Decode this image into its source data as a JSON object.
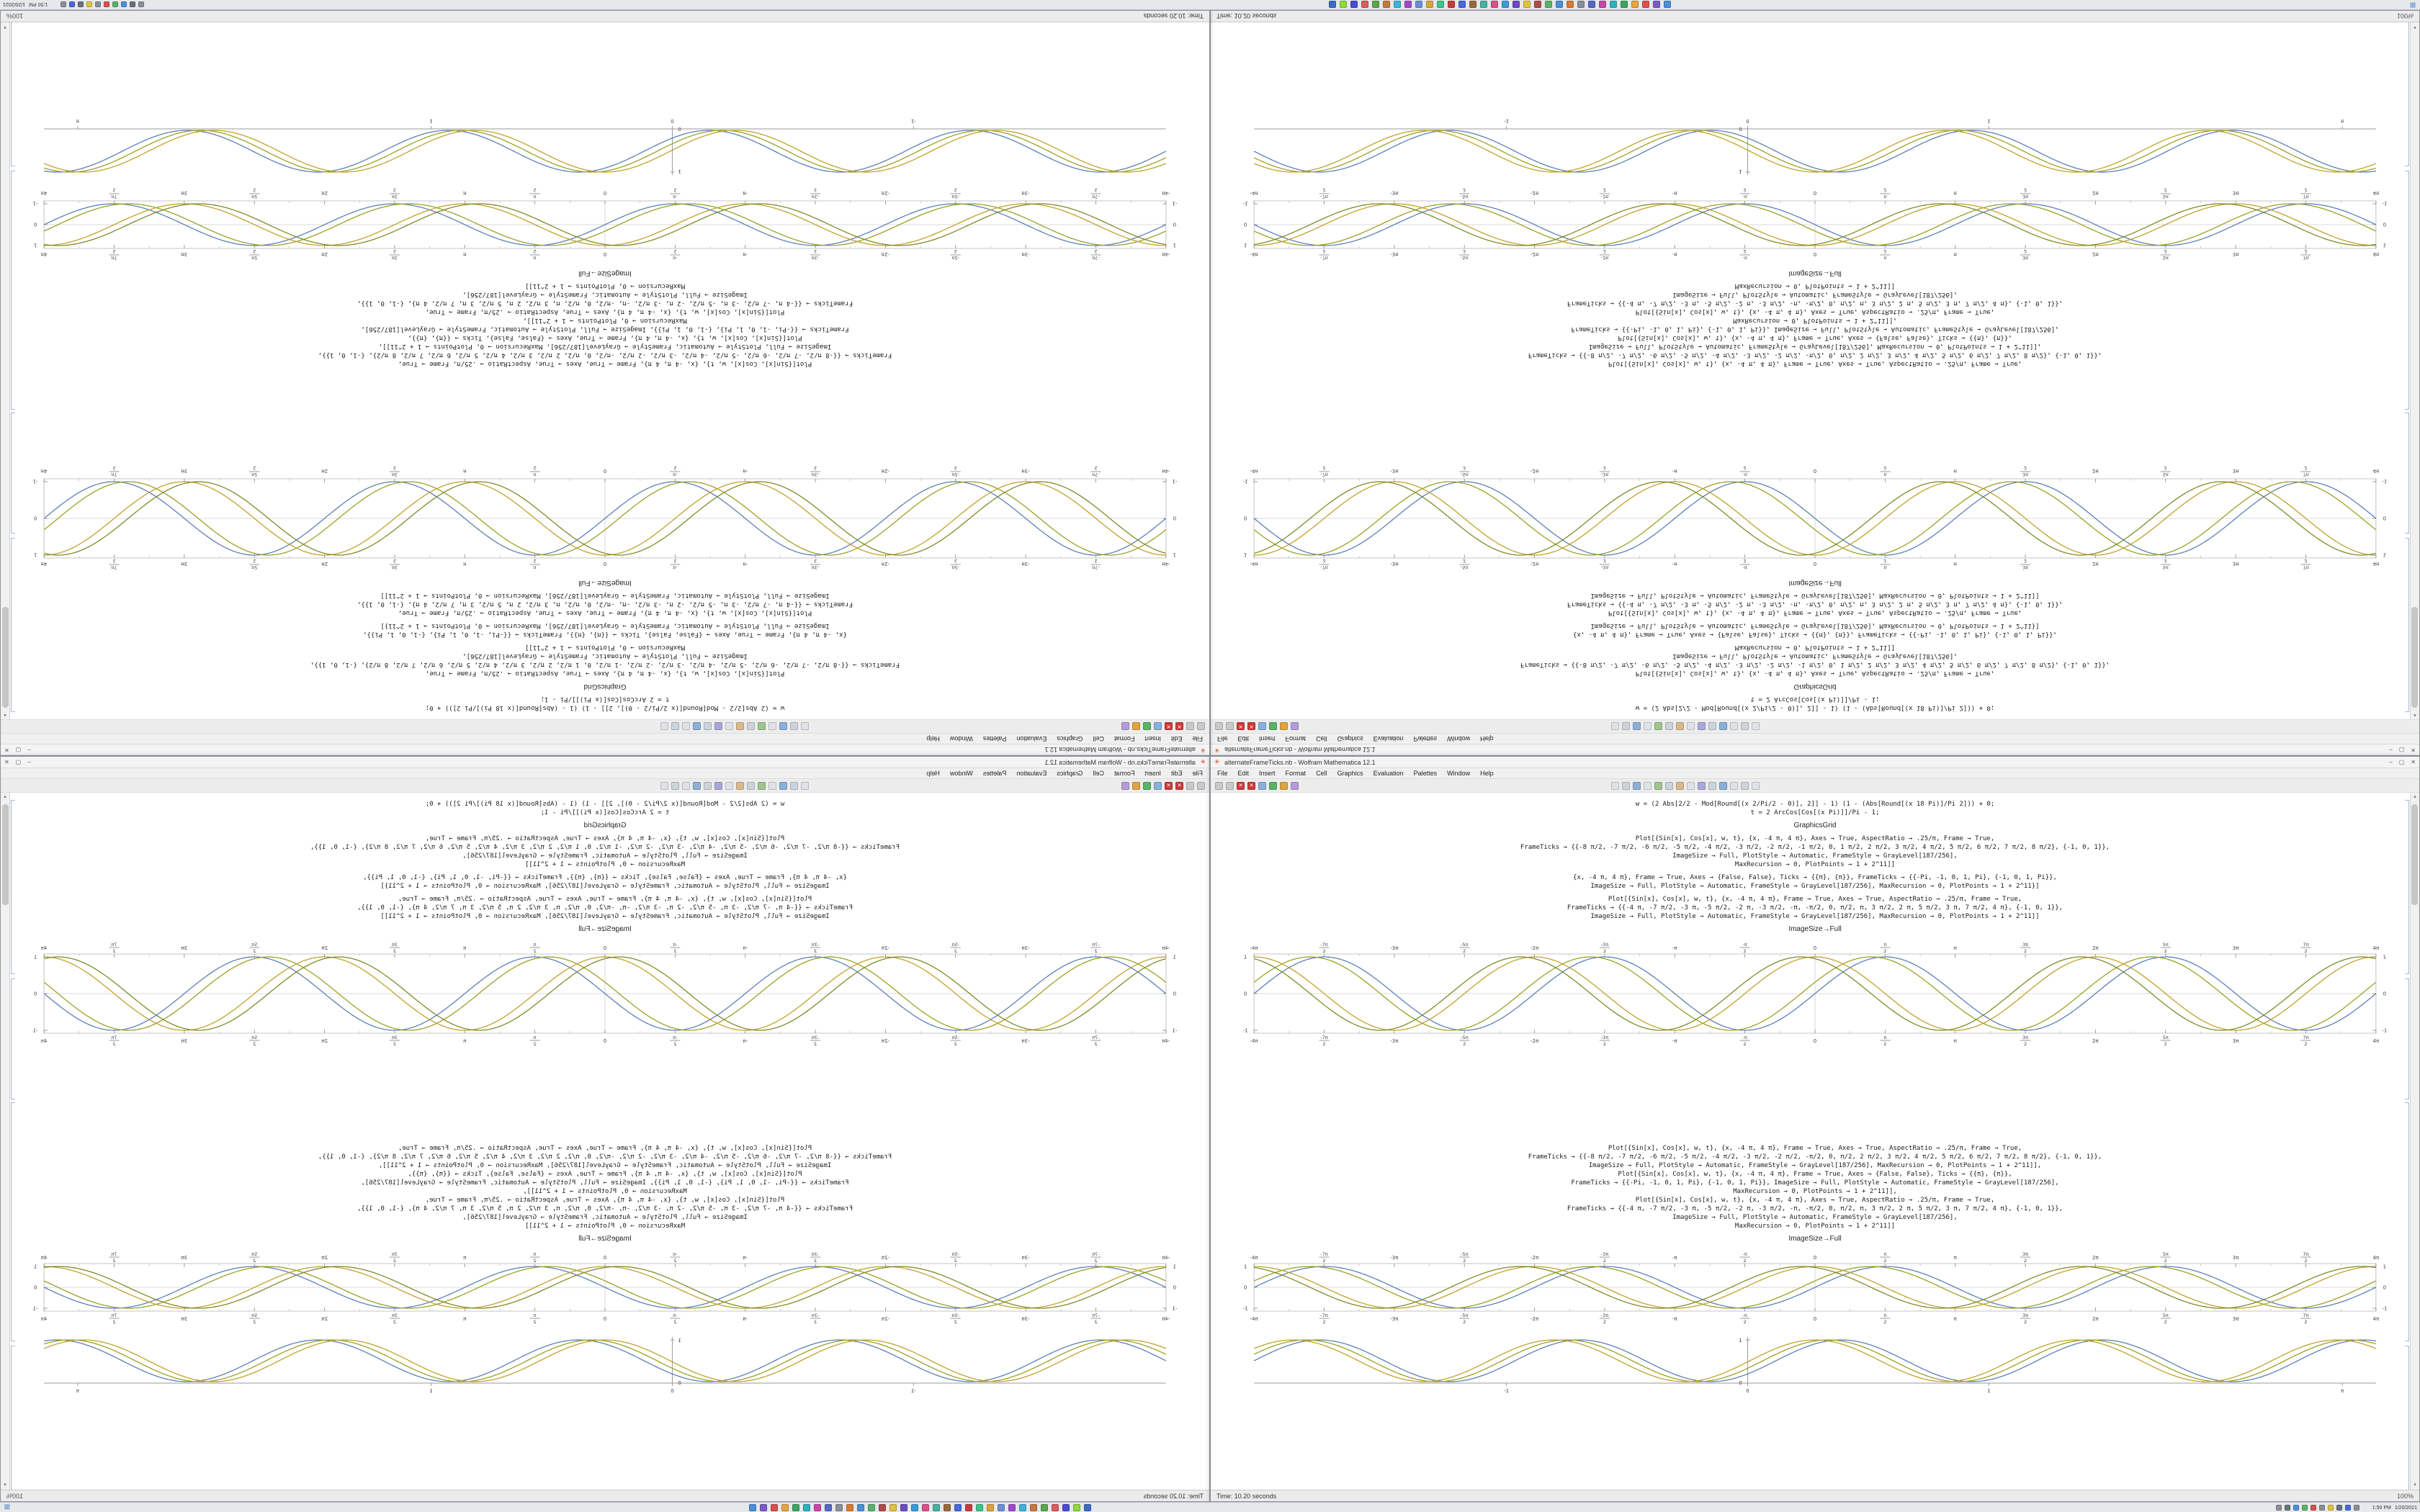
{
  "window": {
    "title": "alternateFrameTicks.nb - Wolfram Mathematica 12.1",
    "buttons": {
      "minimize": "–",
      "maximize": "▢",
      "close": "✕"
    },
    "menu": [
      "File",
      "Edit",
      "Insert",
      "Format",
      "Cell",
      "Graphics",
      "Evaluation",
      "Palettes",
      "Window",
      "Help"
    ],
    "status_left": "Time: 10.20 seconds",
    "status_right": "100%"
  },
  "toolbar": {
    "group1": [
      "#c9c9c9",
      "#c9c9c9",
      "red",
      "red",
      "#8ab0d9",
      "#58b368",
      "#e0a33d",
      "#b59ad9"
    ],
    "group2": [
      "#dfe3e8",
      "#cdd3da",
      "#8ab0d9",
      "#dfe3e8",
      "#9fc48f",
      "#cdd3da",
      "#d9b98a",
      "#dfe3e8",
      "#a9a9d9",
      "#cdd3da",
      "#8ab0d9",
      "#dfe3e8",
      "#cdd3da",
      "#dfe3e8"
    ]
  },
  "taskbar": {
    "start_glyph": "⊞",
    "app_icons": [
      "#4a90d9",
      "#7b5cc6",
      "#d94f4f",
      "#e8a33d",
      "#3da55f",
      "#2bb3c0",
      "#c548a8",
      "#5468c4",
      "#8a8f98",
      "#d97b2f",
      "#4a90d9",
      "#58b368",
      "#b04a4a",
      "#e0c23d",
      "#6a4ac6",
      "#3a9ad9",
      "#d94f8a",
      "#4ab0a0",
      "#9a6a3d",
      "#4a68d9",
      "#c43d3d",
      "#3dc48a",
      "#d9a33d",
      "#6a8fd9",
      "#a04ac6",
      "#3db3d9",
      "#c47b3d",
      "#5ca54a",
      "#d95c5c",
      "#4a4ad9",
      "#8fd93d",
      "#3d6ac4"
    ],
    "tray_icons": [
      "#8a8f98",
      "#6a7280",
      "#4a90d9",
      "#58b368",
      "#d94f4f",
      "#8a8f98",
      "#e0c23d",
      "#6a7280",
      "#4a68d9",
      "#8a8f98"
    ],
    "clock_time": "1:50 PM",
    "clock_date": "1/20/2021"
  },
  "notebook": {
    "cells": [
      {
        "type": "code",
        "lines": [
          "w = (2 Abs[2/2 - Mod[Round[(x 2/Pi/2 - 0)], 2]] - 1) (1 - (Abs[Round[(x 18 Pi)]/Pi 2])) + 0;",
          "t = 2 ArcCos[Cos[(x Pi)]]/Pi - 1;"
        ]
      },
      {
        "type": "caption",
        "text": "GraphicsGrid"
      },
      {
        "type": "code",
        "lines": [
          "Plot[{Sin[x], Cos[x], w, t}, {x, -4 π, 4 π}, Axes → True, AspectRatio → .25/π, Frame → True,",
          "FrameTicks → {{-8 π/2, -7 π/2, -6 π/2, -5 π/2, -4 π/2, -3 π/2, -2 π/2, -1 π/2, 0, 1 π/2, 2 π/2, 3 π/2, 4 π/2, 5 π/2, 6 π/2, 7 π/2, 8 π/2}, {-1, 0, 1}},",
          "ImageSize → Full, PlotStyle → Automatic, FrameStyle → GrayLevel[187/256],",
          "MaxRecursion → 0, PlotPoints → 1 + 2^11]]"
        ]
      },
      {
        "type": "code",
        "lines": [
          "{x, -4 π, 4 π}, Frame → True, Axes → {False, False}, Ticks → {{π}, {π}}, FrameTicks → {{-Pi, -1, 0, 1, Pi}, {-1, 0, 1, Pi}},",
          "ImageSize → Full, PlotStyle → Automatic, FrameStyle → GrayLevel[187/256], MaxRecursion → 0, PlotPoints → 1 + 2^11}]"
        ]
      },
      {
        "type": "code",
        "lines": [
          "Plot[{Sin[x], Cos[x], w, t}, {x, -4 π, 4 π}, Frame → True, Axes → True, AspectRatio → .25/π, Frame → True,",
          "FrameTicks → {{-4 π, -7 π/2, -3 π, -5 π/2, -2 π, -3 π/2, -π, -π/2, 0, π/2, π, 3 π/2, 2 π, 5 π/2, 3 π, 7 π/2, 4 π}, {-1, 0, 1}},",
          "ImageSize → Full, PlotStyle → Automatic, FrameStyle → GrayLevel[187/256], MaxRecursion → 0, PlotPoints → 1 + 2^11]]"
        ]
      },
      {
        "type": "caption",
        "text": "ImageSize→Full"
      },
      {
        "type": "plot",
        "plot": "framedA"
      },
      {
        "type": "spacer",
        "h": 118
      },
      {
        "type": "code",
        "lines": [
          "Plot[{Sin[x], Cos[x], w, t}, {x, -4 π, 4 π}, Frame → True, Axes → True, AspectRatio → .25/π, Frame → True,",
          "FrameTicks → {{-8 π/2, -7 π/2, -6 π/2, -5 π/2, -4 π/2, -3 π/2, -2 π/2, -π/2, 0, π/2, 2 π/2, 3 π/2, 4 π/2, 5 π/2, 6 π/2, 7 π/2, 8 π/2}, {-1, 0, 1}},",
          "ImageSize → Full, PlotStyle → Automatic, FrameStyle → GrayLevel[187/256], MaxRecursion → 0, PlotPoints → 1 + 2^11]],",
          "Plot[{Sin[x], Cos[x], w, t}, {x, -4 π, 4 π}, Frame → True, Axes → {False, False}, Ticks → {{π}, {π}},",
          "FrameTicks → {{-Pi, -1, 0, 1, Pi}, {-1, 0, 1, Pi}}, ImageSize → Full, PlotStyle → Automatic, FrameStyle → GrayLevel[187/256],",
          "MaxRecursion → 0, PlotPoints → 1 + 2^11]],",
          "Plot[{Sin[x], Cos[x], w, t}, {x, -4 π, 4 π}, Axes → True, AspectRatio → .25/π, Frame → True,",
          "FrameTicks → {{-4 π, -7 π/2, -3 π, -5 π/2, -2 π, -3 π/2, -π, -π/2, 0, π/2, π, 3 π/2, 2 π, 5 π/2, 3 π, 7 π/2, 4 π}, {-1, 0, 1}},",
          "ImageSize → Full, PlotStyle → Automatic, FrameStyle → GrayLevel[187/256],",
          "MaxRecursion → 0, PlotPoints → 1 + 2^11]]"
        ]
      },
      {
        "type": "caption",
        "text": "ImageSize→Full"
      },
      {
        "type": "plot",
        "plot": "framedB"
      },
      {
        "type": "plot",
        "plot": "humps"
      }
    ]
  },
  "plots": {
    "framedA": {
      "type": "framed",
      "total_h": 148,
      "cycles": 4,
      "xticks": [
        "-4π",
        "-7π/2",
        "-3π",
        "-5π/2",
        "-2π",
        "-3π/2",
        "-π",
        "-π/2",
        "0",
        "π/2",
        "π",
        "3π/2",
        "2π",
        "5π/2",
        "3π",
        "7π/2",
        "4π"
      ],
      "yticks": [
        "-1",
        "0",
        "1"
      ],
      "series": [
        {
          "fn": "sin",
          "ph": 0,
          "color": "#5e81b5"
        },
        {
          "fn": "sin",
          "ph": 0.05,
          "color": "#9aa226"
        },
        {
          "fn": "sin",
          "ph": 0.25,
          "color": "#c2a22e"
        },
        {
          "fn": "sin",
          "ph": 0.3,
          "color": "#7e8c2a"
        }
      ]
    },
    "framedB": {
      "type": "framed",
      "total_h": 104,
      "cycles": 4,
      "xticks": [
        "-4π",
        "-7π/2",
        "-3π",
        "-5π/2",
        "-2π",
        "-3π/2",
        "-π",
        "-π/2",
        "0",
        "π/2",
        "π",
        "3π/2",
        "2π",
        "5π/2",
        "3π",
        "7π/2",
        "4π"
      ],
      "yticks": [
        "-1",
        "0",
        "1"
      ],
      "series": [
        {
          "fn": "sin",
          "ph": 0,
          "color": "#5e81b5"
        },
        {
          "fn": "sin",
          "ph": 0.05,
          "color": "#9aa226"
        },
        {
          "fn": "sin",
          "ph": 0.25,
          "color": "#c2a22e"
        },
        {
          "fn": "sin",
          "ph": 0.3,
          "color": "#7e8c2a"
        }
      ]
    },
    "humps": {
      "type": "axes",
      "total_h": 88,
      "cycles": 4.3,
      "zero_pos": 0.44,
      "xticks": [
        {
          "label": "-1",
          "pos": 0.225
        },
        {
          "label": "0",
          "pos": 0.44
        },
        {
          "label": "1",
          "pos": 0.655
        },
        {
          "label": "π",
          "pos": 0.97
        }
      ],
      "yticks": [
        "0",
        "1"
      ],
      "series": [
        {
          "ph": 0,
          "color": "#5e81b5"
        },
        {
          "ph": 0.05,
          "color": "#9aa226"
        },
        {
          "ph": 0.1,
          "color": "#c2a22e"
        }
      ]
    }
  }
}
